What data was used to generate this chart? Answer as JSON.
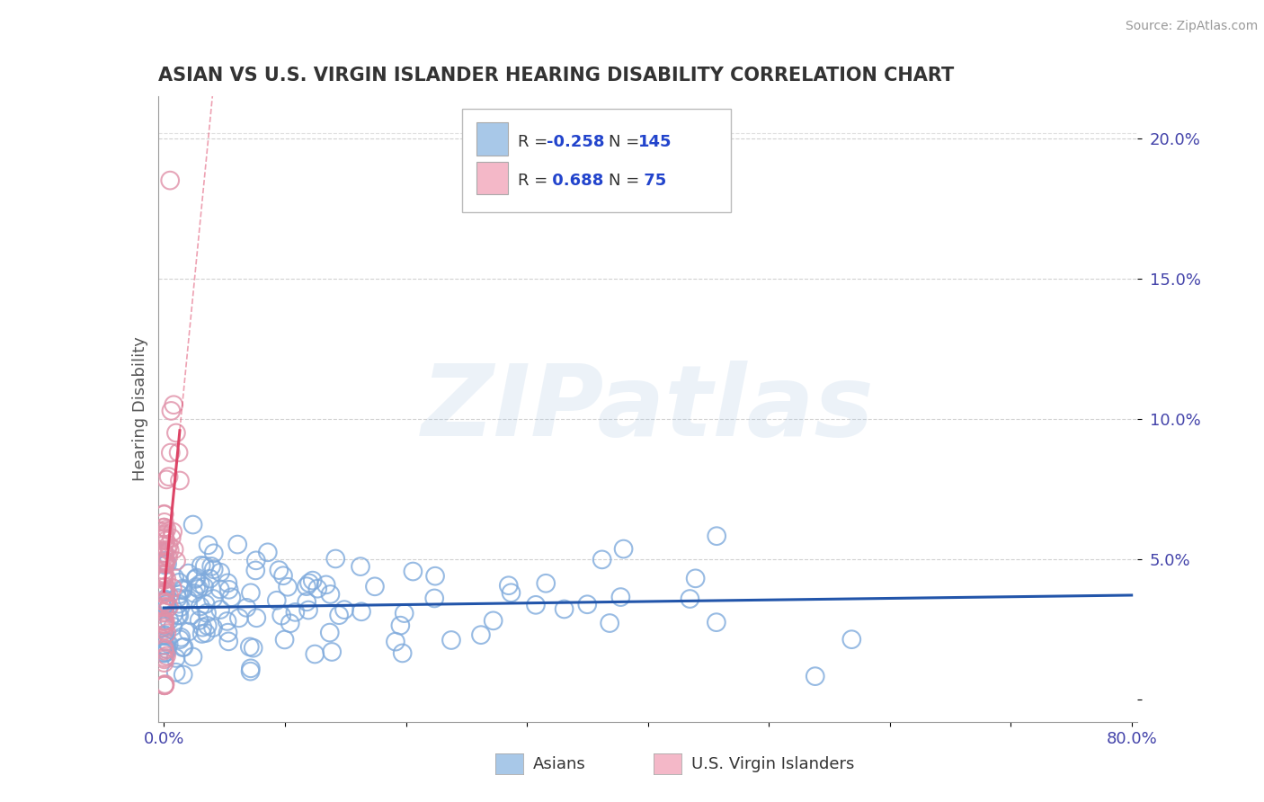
{
  "title": "ASIAN VS U.S. VIRGIN ISLANDER HEARING DISABILITY CORRELATION CHART",
  "source_text": "Source: ZipAtlas.com",
  "ylabel": "Hearing Disability",
  "xlim": [
    -0.005,
    0.805
  ],
  "ylim": [
    -0.008,
    0.215
  ],
  "ytick_positions": [
    0.0,
    0.05,
    0.1,
    0.15,
    0.2
  ],
  "ytick_labels": [
    "",
    "5.0%",
    "10.0%",
    "15.0%",
    "20.0%"
  ],
  "legend_label1": "Asians",
  "legend_label2": "U.S. Virgin Islanders",
  "blue_color": "#a8c8e8",
  "pink_color": "#f4b8c8",
  "blue_edge_color": "#7faadc",
  "pink_edge_color": "#e090a8",
  "blue_line_color": "#2255aa",
  "pink_line_color": "#dd4466",
  "watermark": "ZIPatlas",
  "background_color": "#ffffff",
  "grid_color": "#cccccc",
  "title_color": "#333333",
  "axis_label_color": "#4444aa",
  "legend_r_color": "#2244cc",
  "n_blue": 145,
  "n_pink": 75,
  "blue_r": -0.258,
  "pink_r": 0.688
}
